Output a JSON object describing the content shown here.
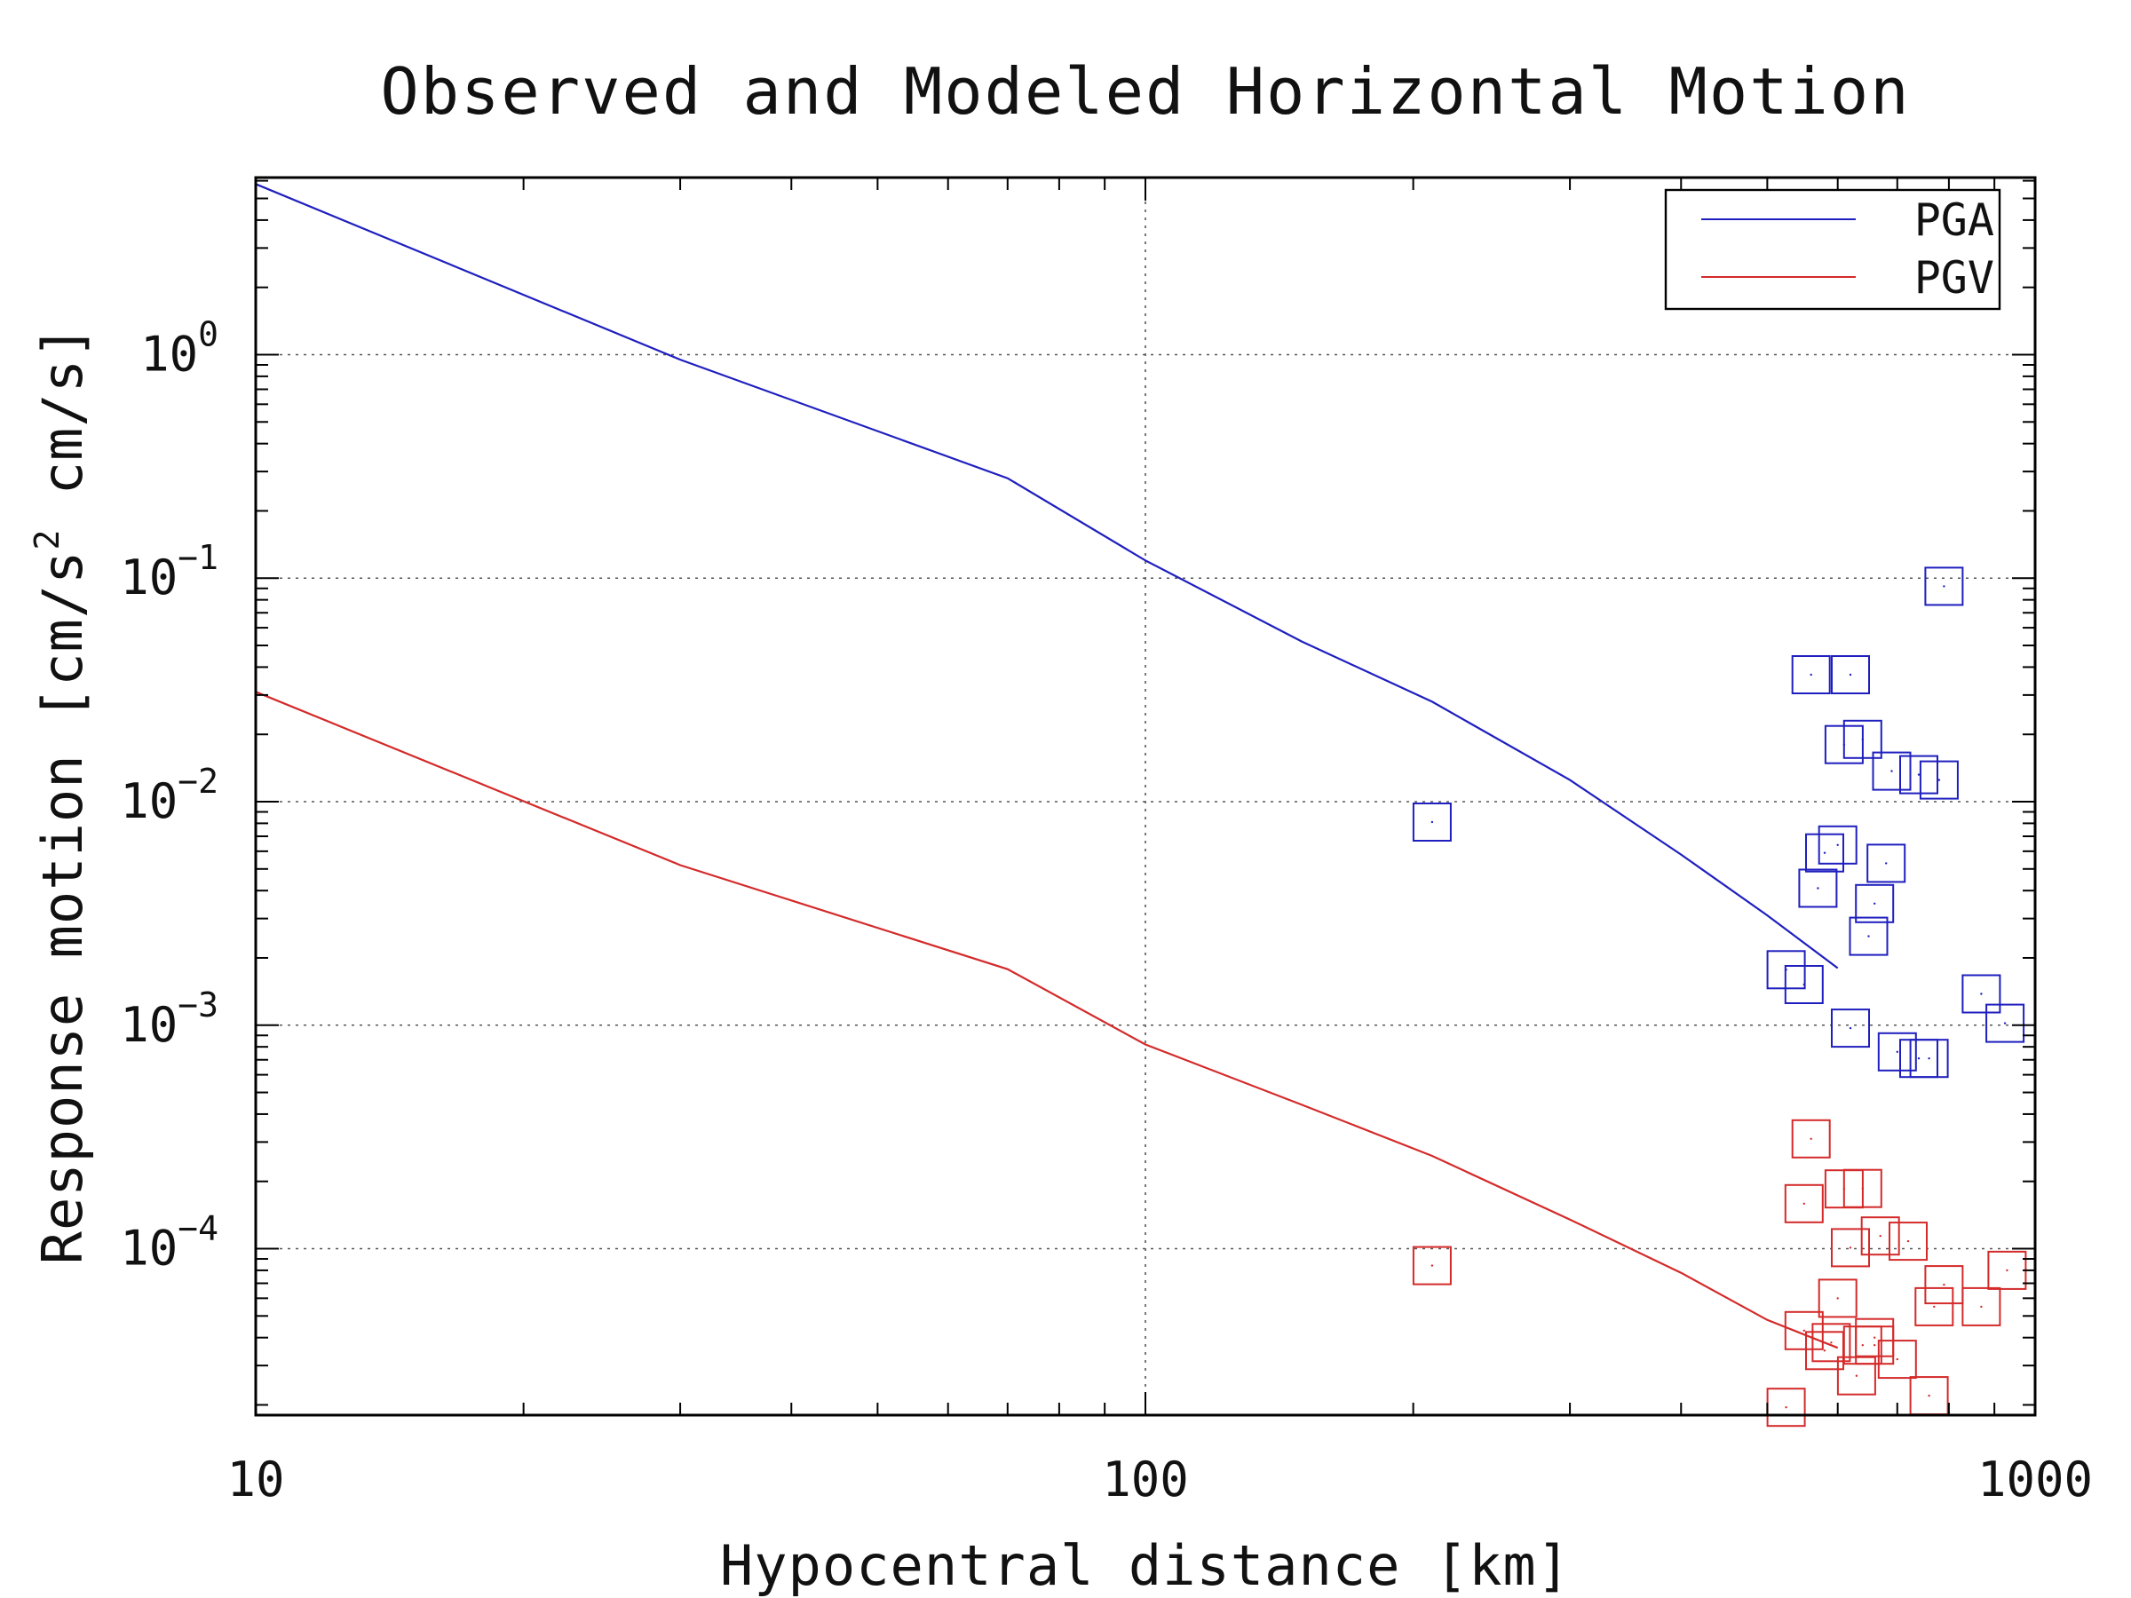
{
  "chart_data": {
    "type": "scatter",
    "title": "Observed and Modeled Horizontal Motion",
    "xlabel": "Hypocentral distance [km]",
    "ylabel": "Response motion [cm/s² cm/s]",
    "ylabel_parts": {
      "before": "Response motion [cm/s",
      "sup": "2",
      "after": " cm/s]"
    },
    "xscale": "log",
    "yscale": "log",
    "xlim": [
      10,
      1000
    ],
    "ylim": [
      1.8e-05,
      6.2
    ],
    "grid": true,
    "x_ticks": [
      {
        "value": 10,
        "label": "10"
      },
      {
        "value": 100,
        "label": "100"
      },
      {
        "value": 1000,
        "label": "1000"
      }
    ],
    "y_ticks": [
      {
        "value": 0.0001,
        "base": "10",
        "exp": "−4"
      },
      {
        "value": 0.001,
        "base": "10",
        "exp": "−3"
      },
      {
        "value": 0.01,
        "base": "10",
        "exp": "−2"
      },
      {
        "value": 0.1,
        "base": "10",
        "exp": "−1"
      },
      {
        "value": 1,
        "base": "10",
        "exp": "0"
      }
    ],
    "legend": {
      "position": "top-right",
      "entries": [
        {
          "label": "PGA",
          "color": "#1f1fbf"
        },
        {
          "label": "PGV",
          "color": "#d42a2a"
        }
      ]
    },
    "model_lines": [
      {
        "name": "PGA",
        "color": "#1f1fbf",
        "x": [
          10,
          30,
          70,
          100,
          150,
          210,
          300,
          400,
          500,
          600
        ],
        "y": [
          5.8,
          0.95,
          0.28,
          0.12,
          0.052,
          0.028,
          0.0125,
          0.0058,
          0.0031,
          0.0018
        ]
      },
      {
        "name": "PGV",
        "color": "#d42a2a",
        "x": [
          10,
          30,
          70,
          100,
          150,
          210,
          300,
          400,
          500,
          600
        ],
        "y": [
          0.031,
          0.0052,
          0.00178,
          0.00082,
          0.00044,
          0.00026,
          0.000135,
          7.8e-05,
          4.8e-05,
          3.6e-05
        ]
      }
    ],
    "observations": [
      {
        "name": "PGA",
        "color": "#1f1fbf",
        "x": [
          210,
          560,
          620,
          790,
          610,
          640,
          690,
          740,
          780,
          580,
          570,
          600,
          680,
          660,
          650,
          525,
          550,
          620,
          700,
          760,
          740,
          870,
          925
        ],
        "y": [
          0.0081,
          0.037,
          0.037,
          0.092,
          0.018,
          0.019,
          0.0137,
          0.0132,
          0.0125,
          0.0059,
          0.0041,
          0.0064,
          0.0053,
          0.0035,
          0.0025,
          0.00177,
          0.00152,
          0.00097,
          0.00076,
          0.00071,
          0.00071,
          0.00138,
          0.00102
        ]
      },
      {
        "name": "PGV",
        "color": "#d42a2a",
        "x": [
          210,
          560,
          550,
          610,
          640,
          620,
          670,
          720,
          790,
          930,
          600,
          550,
          590,
          640,
          660,
          700,
          630,
          580,
          660,
          760,
          770,
          870,
          525
        ],
        "y": [
          8.4e-05,
          0.00031,
          0.000159,
          0.000185,
          0.000186,
          0.000101,
          0.000114,
          0.000108,
          6.9e-05,
          8e-05,
          6e-05,
          4.3e-05,
          3.8e-05,
          3.7e-05,
          4e-05,
          3.2e-05,
          2.7e-05,
          3.5e-05,
          3.7e-05,
          2.2e-05,
          5.5e-05,
          5.5e-05,
          1.95e-05
        ]
      }
    ]
  }
}
